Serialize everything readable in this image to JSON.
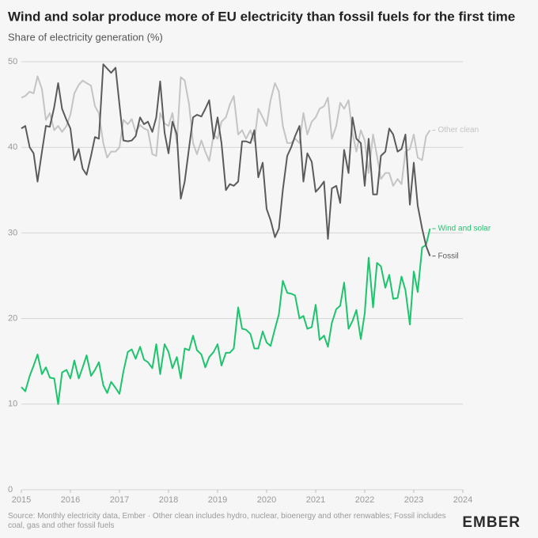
{
  "chart_data": {
    "type": "line",
    "title": "Wind and solar produce more of EU electricity than fossil fuels for the first time",
    "subtitle": "Share of electricity generation (%)",
    "source": "Source: Monthly electricity data, Ember · Other clean includes hydro, nuclear, bioenergy and other renwables; Fossil includes coal, gas and other fossil fuels",
    "logo": "EMBER",
    "x": [
      2015,
      2015.08,
      2015.17,
      2015.25,
      2015.33,
      2015.42,
      2015.5,
      2015.58,
      2015.67,
      2015.75,
      2015.83,
      2015.92,
      2016,
      2016.08,
      2016.17,
      2016.25,
      2016.33,
      2016.42,
      2016.5,
      2016.58,
      2016.67,
      2016.75,
      2016.83,
      2016.92,
      2017,
      2017.08,
      2017.17,
      2017.25,
      2017.33,
      2017.42,
      2017.5,
      2017.58,
      2017.67,
      2017.75,
      2017.83,
      2017.92,
      2018,
      2018.08,
      2018.17,
      2018.25,
      2018.33,
      2018.42,
      2018.5,
      2018.58,
      2018.67,
      2018.75,
      2018.83,
      2018.92,
      2019,
      2019.08,
      2019.17,
      2019.25,
      2019.33,
      2019.42,
      2019.5,
      2019.58,
      2019.67,
      2019.75,
      2019.83,
      2019.92,
      2020,
      2020.08,
      2020.17,
      2020.25,
      2020.33,
      2020.42,
      2020.5,
      2020.58,
      2020.67,
      2020.75,
      2020.83,
      2020.92,
      2021,
      2021.08,
      2021.17,
      2021.25,
      2021.33,
      2021.42,
      2021.5,
      2021.58,
      2021.67,
      2021.75,
      2021.83,
      2021.92,
      2022,
      2022.08,
      2022.17,
      2022.25,
      2022.33,
      2022.42,
      2022.5,
      2022.58,
      2022.67,
      2022.75,
      2022.83,
      2022.92,
      2023,
      2023.08,
      2023.17,
      2023.25,
      2023.33
    ],
    "series": [
      {
        "name": "Other clean",
        "color": "#c4c4c4",
        "values": [
          45.8,
          46,
          46.5,
          46.3,
          48.3,
          46.8,
          43.2,
          44,
          42,
          42.5,
          41.8,
          42.5,
          43.8,
          46.3,
          47.3,
          47.8,
          47.5,
          47.2,
          44.8,
          44,
          40.5,
          38.8,
          39.5,
          39.5,
          40,
          43.2,
          42.7,
          43.3,
          41.8,
          42.6,
          42.2,
          42,
          39.2,
          39,
          44,
          42.8,
          42.5,
          44,
          40.5,
          48.2,
          47.8,
          45,
          40.5,
          39.2,
          40.8,
          39.5,
          38.4,
          41.5,
          41,
          43,
          43.5,
          45,
          46,
          41.5,
          42,
          41,
          42,
          40.7,
          44.5,
          43.5,
          42.5,
          45.5,
          47.5,
          46.5,
          42.5,
          40.5,
          40.5,
          41,
          40.5,
          44,
          41.5,
          43,
          43.5,
          44.5,
          44.8,
          45.8,
          41,
          42.5,
          45.2,
          44.5,
          45.5,
          41.7,
          39.5,
          42,
          40.8,
          37,
          41.5,
          39,
          36.3,
          37,
          37,
          35.5,
          36.3,
          35.7,
          39.5,
          39.8,
          41.5,
          38.8,
          38.5,
          41.3,
          42
        ]
      },
      {
        "name": "Wind and solar",
        "color": "#1ec46d",
        "values": [
          12,
          11.5,
          13.3,
          14.5,
          15.8,
          13.5,
          14.3,
          13.1,
          13,
          10,
          13.7,
          14,
          13,
          15.1,
          13,
          14.3,
          15.7,
          13.3,
          14,
          14.9,
          12.2,
          11.3,
          12.6,
          11.9,
          11.2,
          13.8,
          16.1,
          16.4,
          15.3,
          16.7,
          15.2,
          14.9,
          14.2,
          17,
          13.5,
          17,
          16.1,
          14.2,
          15.5,
          13,
          16.5,
          16.3,
          18,
          16.3,
          15.8,
          14.3,
          15.5,
          16.1,
          17,
          14.5,
          16,
          16,
          16.5,
          21.3,
          18.8,
          18.7,
          18.2,
          16.5,
          16.5,
          18.5,
          17.2,
          16.8,
          18.8,
          20.5,
          24.4,
          23,
          22.9,
          22.7,
          20,
          20.3,
          18.8,
          19,
          21.6,
          17.5,
          18,
          16.7,
          19.5,
          21.1,
          21.5,
          24.2,
          18.8,
          19.7,
          21,
          17.6,
          20.6,
          27.1,
          21.3,
          26.5,
          26.1,
          23.6,
          25.1,
          22.3,
          22.4,
          24.9,
          23.3,
          19.3,
          25.5,
          23.1,
          28.3,
          28.6,
          30.5
        ]
      },
      {
        "name": "Fossil",
        "color": "#5b5b5b",
        "values": [
          42.2,
          42.5,
          40,
          39.3,
          36,
          39.5,
          42.5,
          42.4,
          44.7,
          47.5,
          44.5,
          43.2,
          42.2,
          38.5,
          39.8,
          37.5,
          36.8,
          39,
          41.2,
          41,
          49.7,
          49.2,
          48.7,
          49.3,
          45,
          40.8,
          40.7,
          40.8,
          41.3,
          43.5,
          42.7,
          43,
          41.8,
          43.5,
          47.7,
          41.7,
          39.3,
          43,
          41.5,
          34,
          36,
          40,
          43.5,
          43.8,
          43.6,
          44.5,
          45.5,
          41,
          43.5,
          40.5,
          35,
          35.7,
          35.5,
          36,
          40.7,
          40.7,
          40.5,
          42,
          36.5,
          38.2,
          32.8,
          31.5,
          29.5,
          30.5,
          35,
          39,
          40,
          41.3,
          42.5,
          36,
          39.3,
          38.3,
          34.8,
          35.3,
          36,
          29.3,
          35.2,
          35.5,
          33.5,
          39.7,
          37,
          43.5,
          41,
          40.5,
          35.5,
          41,
          34.5,
          34.5,
          39,
          39.5,
          42.2,
          41.5,
          39.5,
          39.8,
          41.5,
          33.3,
          38.2,
          33.2,
          30.5,
          28.5,
          27.3
        ]
      }
    ],
    "xlim": [
      2015,
      2024
    ],
    "xticks": [
      2015,
      2016,
      2017,
      2018,
      2019,
      2020,
      2021,
      2022,
      2023,
      2024
    ],
    "ylim": [
      0,
      50
    ],
    "yticks": [
      0,
      10,
      20,
      30,
      40,
      50
    ],
    "grid": true
  }
}
